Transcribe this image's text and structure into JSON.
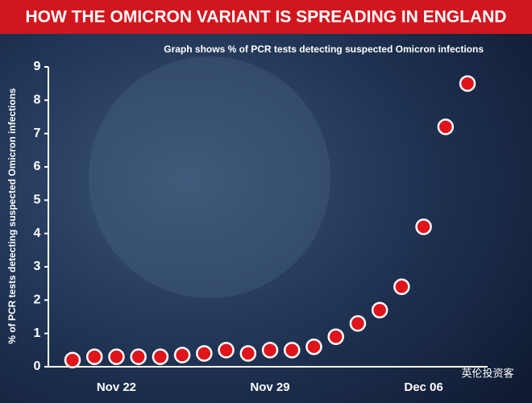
{
  "chart_data": {
    "type": "scatter",
    "title": "HOW THE OMICRON VARIANT IS SPREADING IN ENGLAND",
    "subtitle": "Graph shows % of PCR tests detecting suspected Omicron infections",
    "y_label": "% of PCR tests detecting suspected Omicron infections",
    "watermark": "英伦投资客",
    "categories": [
      null,
      null,
      "Nov 22",
      null,
      null,
      null,
      null,
      null,
      null,
      "Nov 29",
      null,
      null,
      null,
      null,
      null,
      null,
      "Dec 06",
      null,
      null
    ],
    "values": [
      0.2,
      0.3,
      0.3,
      0.3,
      0.3,
      0.35,
      0.4,
      0.5,
      0.4,
      0.5,
      0.5,
      0.6,
      0.9,
      1.3,
      1.7,
      2.4,
      4.2,
      7.2,
      8.5
    ],
    "color": "#e0141b",
    "ylim": [
      0,
      9
    ],
    "yticks": [
      0,
      1,
      2,
      3,
      4,
      5,
      6,
      7,
      8,
      9
    ],
    "grid": false
  }
}
